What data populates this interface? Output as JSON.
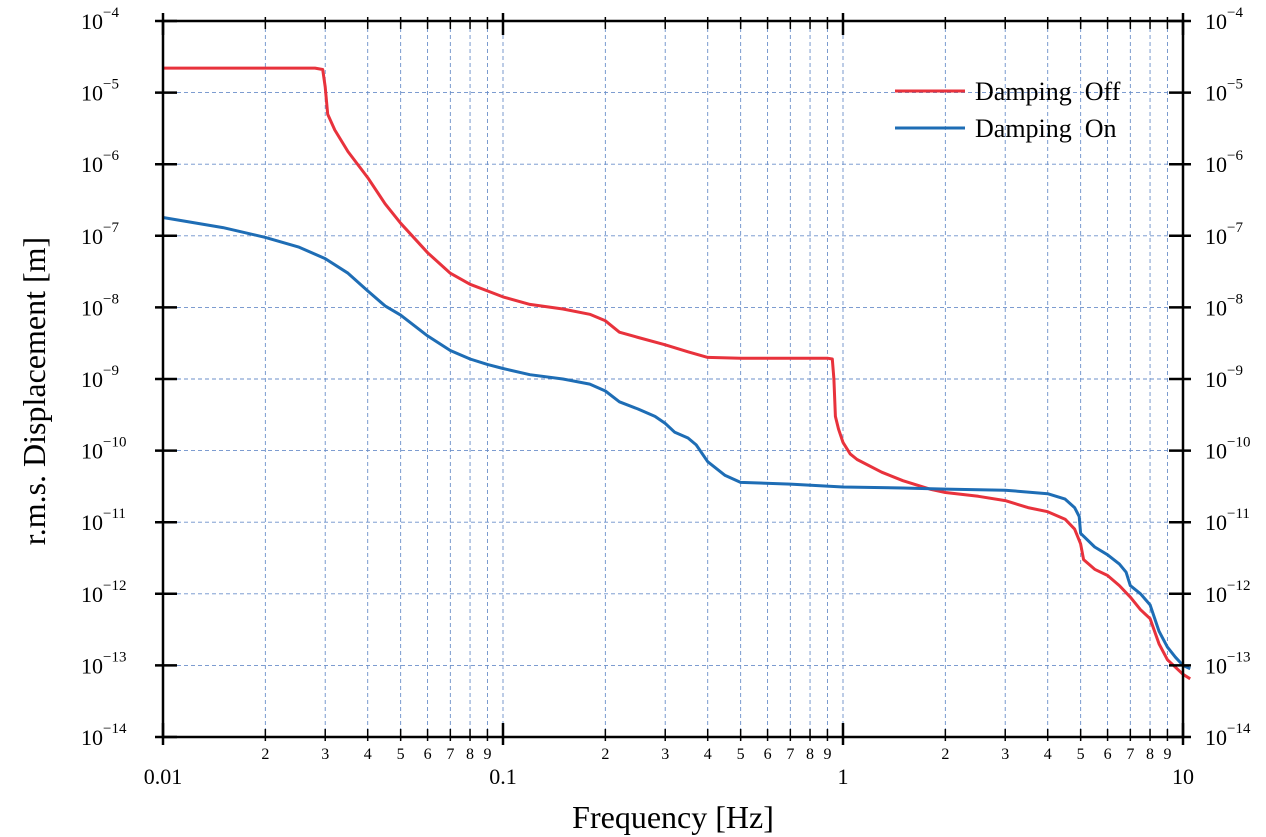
{
  "chart_data": {
    "type": "line",
    "xscale": "log",
    "yscale": "log",
    "xlim": [
      0.01,
      10
    ],
    "ylim": [
      1e-14,
      0.0001
    ],
    "xlabel": "Frequency   [Hz]",
    "ylabel": "r.m.s. Displacement [m]",
    "grid": true,
    "legend_position": "top-right",
    "x_major_ticks": [
      "0.01",
      "0.1",
      "1",
      "10"
    ],
    "x_minor_ticks": [
      "2",
      "3",
      "4",
      "5",
      "6",
      "7",
      "8",
      "9"
    ],
    "y_ticks": [
      {
        "base": "10",
        "exp": "-4"
      },
      {
        "base": "10",
        "exp": "-5"
      },
      {
        "base": "10",
        "exp": "-6"
      },
      {
        "base": "10",
        "exp": "-7"
      },
      {
        "base": "10",
        "exp": "-8"
      },
      {
        "base": "10",
        "exp": "-9"
      },
      {
        "base": "10",
        "exp": "-10"
      },
      {
        "base": "10",
        "exp": "-11"
      },
      {
        "base": "10",
        "exp": "-12"
      },
      {
        "base": "10",
        "exp": "-13"
      },
      {
        "base": "10",
        "exp": "-14"
      }
    ],
    "series": [
      {
        "name": "Damping  Off",
        "color": "#e8323c",
        "points": [
          [
            0.01,
            2.2e-05
          ],
          [
            0.02,
            2.2e-05
          ],
          [
            0.028,
            2.2e-05
          ],
          [
            0.0295,
            2.1e-05
          ],
          [
            0.03,
            1.2e-05
          ],
          [
            0.0305,
            5e-06
          ],
          [
            0.032,
            3e-06
          ],
          [
            0.035,
            1.5e-06
          ],
          [
            0.04,
            6.5e-07
          ],
          [
            0.045,
            2.8e-07
          ],
          [
            0.05,
            1.5e-07
          ],
          [
            0.06,
            5.8e-08
          ],
          [
            0.07,
            3e-08
          ],
          [
            0.08,
            2.1e-08
          ],
          [
            0.09,
            1.7e-08
          ],
          [
            0.1,
            1.4e-08
          ],
          [
            0.12,
            1.1e-08
          ],
          [
            0.15,
            9.5e-09
          ],
          [
            0.18,
            8e-09
          ],
          [
            0.2,
            6.5e-09
          ],
          [
            0.22,
            4.5e-09
          ],
          [
            0.25,
            3.8e-09
          ],
          [
            0.3,
            3e-09
          ],
          [
            0.35,
            2.4e-09
          ],
          [
            0.4,
            2e-09
          ],
          [
            0.5,
            1.95e-09
          ],
          [
            0.6,
            1.95e-09
          ],
          [
            0.7,
            1.95e-09
          ],
          [
            0.8,
            1.95e-09
          ],
          [
            0.9,
            1.95e-09
          ],
          [
            0.93,
            1.9e-09
          ],
          [
            0.94,
            1e-09
          ],
          [
            0.95,
            3e-10
          ],
          [
            0.97,
            2e-10
          ],
          [
            1.0,
            1.3e-10
          ],
          [
            1.05,
            9e-11
          ],
          [
            1.1,
            7.5e-11
          ],
          [
            1.3,
            5e-11
          ],
          [
            1.5,
            3.8e-11
          ],
          [
            1.8,
            2.9e-11
          ],
          [
            2.0,
            2.6e-11
          ],
          [
            2.5,
            2.3e-11
          ],
          [
            3.0,
            2e-11
          ],
          [
            3.5,
            1.6e-11
          ],
          [
            4.0,
            1.4e-11
          ],
          [
            4.5,
            1.1e-11
          ],
          [
            4.8,
            8e-12
          ],
          [
            5.0,
            5e-12
          ],
          [
            5.1,
            3e-12
          ],
          [
            5.5,
            2.2e-12
          ],
          [
            6.0,
            1.8e-12
          ],
          [
            6.5,
            1.3e-12
          ],
          [
            7.0,
            9e-13
          ],
          [
            7.5,
            6e-13
          ],
          [
            8.0,
            4.5e-13
          ],
          [
            8.5,
            2e-13
          ],
          [
            9.0,
            1.2e-13
          ],
          [
            10.0,
            7.5e-14
          ],
          [
            10.5,
            6.5e-14
          ]
        ]
      },
      {
        "name": "Damping  On",
        "color": "#1e6db5",
        "points": [
          [
            0.01,
            1.8e-07
          ],
          [
            0.015,
            1.3e-07
          ],
          [
            0.02,
            9.5e-08
          ],
          [
            0.025,
            7e-08
          ],
          [
            0.03,
            4.8e-08
          ],
          [
            0.035,
            3e-08
          ],
          [
            0.04,
            1.7e-08
          ],
          [
            0.045,
            1.05e-08
          ],
          [
            0.05,
            7.8e-09
          ],
          [
            0.06,
            4e-09
          ],
          [
            0.07,
            2.5e-09
          ],
          [
            0.08,
            1.9e-09
          ],
          [
            0.09,
            1.6e-09
          ],
          [
            0.1,
            1.4e-09
          ],
          [
            0.12,
            1.15e-09
          ],
          [
            0.15,
            1e-09
          ],
          [
            0.18,
            8.5e-10
          ],
          [
            0.2,
            6.8e-10
          ],
          [
            0.22,
            4.8e-10
          ],
          [
            0.25,
            3.8e-10
          ],
          [
            0.28,
            3e-10
          ],
          [
            0.3,
            2.4e-10
          ],
          [
            0.32,
            1.8e-10
          ],
          [
            0.35,
            1.5e-10
          ],
          [
            0.37,
            1.2e-10
          ],
          [
            0.4,
            7e-11
          ],
          [
            0.45,
            4.5e-11
          ],
          [
            0.5,
            3.6e-11
          ],
          [
            0.7,
            3.4e-11
          ],
          [
            1.0,
            3.1e-11
          ],
          [
            1.5,
            3e-11
          ],
          [
            2.0,
            2.9e-11
          ],
          [
            3.0,
            2.8e-11
          ],
          [
            4.0,
            2.5e-11
          ],
          [
            4.5,
            2.1e-11
          ],
          [
            4.8,
            1.6e-11
          ],
          [
            4.95,
            1.2e-11
          ],
          [
            5.0,
            7e-12
          ],
          [
            5.5,
            4.5e-12
          ],
          [
            6.0,
            3.5e-12
          ],
          [
            6.5,
            2.6e-12
          ],
          [
            6.8,
            2e-12
          ],
          [
            7.0,
            1.3e-12
          ],
          [
            7.5,
            1e-12
          ],
          [
            8.0,
            7e-13
          ],
          [
            8.5,
            3e-13
          ],
          [
            9.0,
            1.8e-13
          ],
          [
            9.5,
            1.3e-13
          ],
          [
            10.0,
            1e-13
          ],
          [
            10.5,
            9e-14
          ]
        ]
      }
    ]
  }
}
